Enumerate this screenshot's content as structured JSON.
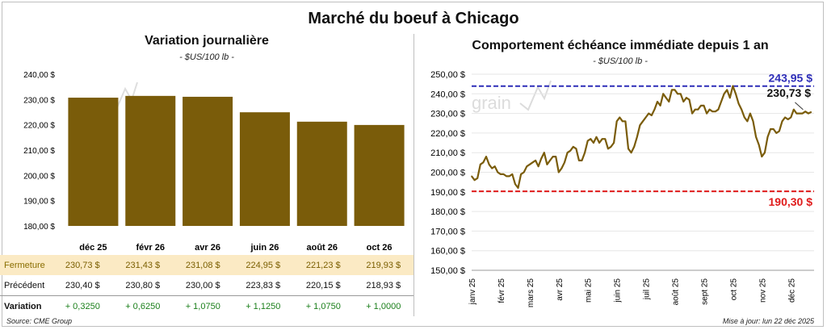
{
  "title": "Marché du boeuf à Chicago",
  "left_title": "Variation  journalière",
  "left_unit": "- $US/100 lb -",
  "right_title": "Comportement  échéance immédiate depuis 1 an",
  "right_unit": "- $US/100 lb -",
  "watermark": "grain",
  "table": {
    "rows": [
      {
        "label": "Fermeture",
        "values": [
          "230,73  $",
          "231,43  $",
          "231,08  $",
          "224,95  $",
          "221,23  $",
          "219,93  $"
        ]
      },
      {
        "label": "Précédent",
        "values": [
          "230,40  $",
          "230,80  $",
          "230,00  $",
          "223,83  $",
          "220,15  $",
          "218,93  $"
        ]
      },
      {
        "label": "Variation",
        "values": [
          "+ 0,3250",
          "+ 0,6250",
          "+ 1,0750",
          "+ 1,1250",
          "+ 1,0750",
          "+ 1,0000"
        ]
      }
    ]
  },
  "source": "Source: CME Group",
  "updated": "Mise à jour: lun 22 déc 2025",
  "colors": {
    "bar": "#7a5c0a",
    "line": "#7a5c0a",
    "max_line": "#2e2eb8",
    "min_line": "#e01b1b"
  },
  "chart_data": [
    {
      "type": "bar",
      "title": "Variation  journalière",
      "subtitle": "- $US/100 lb -",
      "categories": [
        "déc 25",
        "févr 26",
        "avr 26",
        "juin 26",
        "août 26",
        "oct 26"
      ],
      "values": [
        230.73,
        231.43,
        231.08,
        224.95,
        221.23,
        219.93
      ],
      "ylim": [
        180,
        240
      ],
      "yticks": [
        180,
        190,
        200,
        210,
        220,
        230,
        240
      ],
      "ytick_labels": [
        "180,00 $",
        "190,00 $",
        "200,00 $",
        "210,00 $",
        "220,00 $",
        "230,00 $",
        "240,00 $"
      ],
      "grid": false
    },
    {
      "type": "line",
      "title": "Comportement  échéance immédiate depuis 1 an",
      "subtitle": "- $US/100 lb -",
      "xlim": [
        0,
        11.8
      ],
      "ylim": [
        150,
        250
      ],
      "yticks": [
        150,
        160,
        170,
        180,
        190,
        200,
        210,
        220,
        230,
        240,
        250
      ],
      "ytick_labels": [
        "150,00 $",
        "160,00 $",
        "170,00 $",
        "180,00 $",
        "190,00 $",
        "200,00 $",
        "210,00 $",
        "220,00 $",
        "230,00 $",
        "240,00 $",
        "250,00 $"
      ],
      "x_tick_labels": [
        "janv 25",
        "févr 25",
        "mars 25",
        "avr 25",
        "mai 25",
        "juin 25",
        "juil 25",
        "août 25",
        "sept 25",
        "oct 25",
        "nov 25",
        "déc 25"
      ],
      "max_line": {
        "value": 243.95,
        "label": "243,95 $"
      },
      "min_line": {
        "value": 190.3,
        "label": "190,30 $"
      },
      "last_label": "230,73 $",
      "x": [
        0.0,
        0.1,
        0.2,
        0.3,
        0.4,
        0.5,
        0.6,
        0.7,
        0.8,
        0.9,
        1.0,
        1.1,
        1.2,
        1.3,
        1.4,
        1.5,
        1.6,
        1.7,
        1.8,
        1.9,
        2.0,
        2.1,
        2.2,
        2.3,
        2.4,
        2.5,
        2.6,
        2.7,
        2.8,
        2.9,
        3.0,
        3.1,
        3.2,
        3.3,
        3.4,
        3.5,
        3.6,
        3.7,
        3.8,
        3.9,
        4.0,
        4.1,
        4.2,
        4.3,
        4.4,
        4.5,
        4.6,
        4.7,
        4.8,
        4.9,
        5.0,
        5.1,
        5.2,
        5.3,
        5.4,
        5.5,
        5.6,
        5.7,
        5.8,
        5.9,
        6.0,
        6.1,
        6.2,
        6.3,
        6.4,
        6.5,
        6.6,
        6.7,
        6.8,
        6.9,
        7.0,
        7.1,
        7.2,
        7.3,
        7.4,
        7.5,
        7.6,
        7.7,
        7.8,
        7.9,
        8.0,
        8.1,
        8.2,
        8.3,
        8.4,
        8.5,
        8.6,
        8.7,
        8.8,
        8.9,
        9.0,
        9.1,
        9.2,
        9.3,
        9.4,
        9.5,
        9.6,
        9.7,
        9.8,
        9.9,
        10.0,
        10.1,
        10.2,
        10.3,
        10.4,
        10.5,
        10.6,
        10.7,
        10.8,
        10.9,
        11.0,
        11.1,
        11.2,
        11.3,
        11.4,
        11.5,
        11.6,
        11.7
      ],
      "y": [
        198,
        196,
        197,
        204,
        205,
        208,
        204,
        202,
        203,
        200,
        199,
        199,
        198,
        198,
        199,
        194,
        192,
        199,
        200,
        203,
        204,
        205,
        206,
        203,
        207,
        210,
        204,
        206,
        208,
        208,
        200,
        202,
        205,
        210,
        211,
        213,
        212,
        206,
        206,
        210,
        216,
        217,
        215,
        218,
        215,
        217,
        217,
        212,
        213,
        215,
        226,
        228,
        226,
        226,
        212,
        210,
        213,
        218,
        224,
        226,
        228,
        230,
        229,
        232,
        236,
        234,
        240,
        238,
        236,
        242,
        242,
        240,
        240,
        236,
        238,
        237,
        230,
        232,
        232,
        234,
        234,
        230,
        232,
        231,
        231,
        232,
        236,
        240,
        242,
        238,
        244,
        240,
        235,
        232,
        228,
        226,
        230,
        226,
        218,
        214,
        208,
        210,
        218,
        222,
        222,
        220,
        221,
        226,
        228,
        227,
        228,
        232,
        230,
        230,
        230,
        231,
        230,
        230.7
      ]
    }
  ]
}
